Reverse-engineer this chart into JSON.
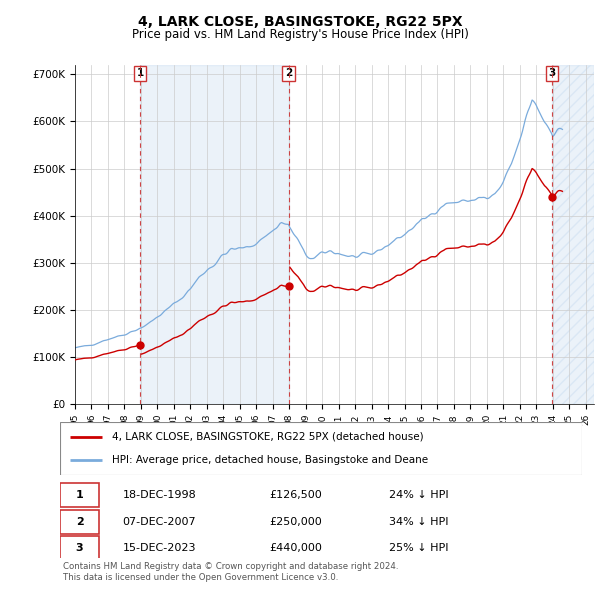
{
  "title": "4, LARK CLOSE, BASINGSTOKE, RG22 5PX",
  "subtitle": "Price paid vs. HM Land Registry's House Price Index (HPI)",
  "hpi_label": "HPI: Average price, detached house, Basingstoke and Deane",
  "price_label": "4, LARK CLOSE, BASINGSTOKE, RG22 5PX (detached house)",
  "hpi_color": "#7aabdc",
  "price_color": "#cc0000",
  "bg_color": "#f0f4fa",
  "transactions": [
    {
      "num": 1,
      "date": "18-DEC-1998",
      "year": 1998.96,
      "price": 126500,
      "pct": "24% ↓ HPI"
    },
    {
      "num": 2,
      "date": "07-DEC-2007",
      "year": 2007.96,
      "price": 250000,
      "pct": "34% ↓ HPI"
    },
    {
      "num": 3,
      "date": "15-DEC-2023",
      "year": 2023.96,
      "price": 440000,
      "pct": "25% ↓ HPI"
    }
  ],
  "footnote1": "Contains HM Land Registry data © Crown copyright and database right 2024.",
  "footnote2": "This data is licensed under the Open Government Licence v3.0.",
  "ylim": [
    0,
    720000
  ],
  "yticks": [
    0,
    100000,
    200000,
    300000,
    400000,
    500000,
    600000,
    700000
  ],
  "ytick_labels": [
    "£0",
    "£100K",
    "£200K",
    "£300K",
    "£400K",
    "£500K",
    "£600K",
    "£700K"
  ]
}
